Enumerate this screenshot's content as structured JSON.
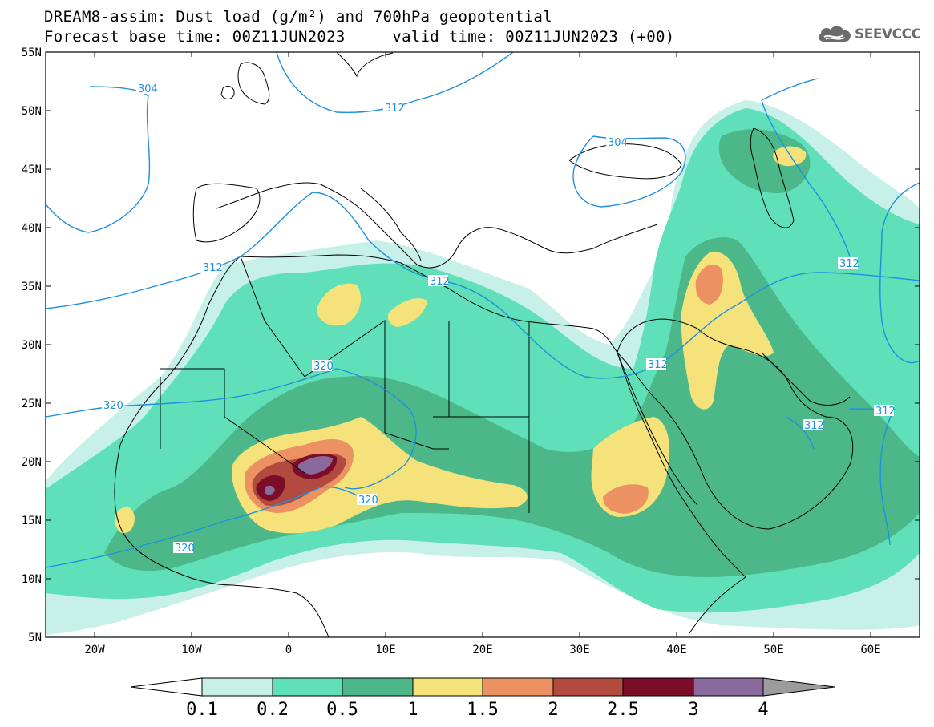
{
  "header": {
    "line1": "DREAM8-assim: Dust load (g/m²) and 700hPa geopotential",
    "line2": "Forecast base time: 00Z11JUN2023     valid time: 00Z11JUN2023 (+00)"
  },
  "logo": {
    "text": "SEEVCCC",
    "icon": "cloud-icon"
  },
  "axes": {
    "lat_labels": [
      "55N",
      "50N",
      "45N",
      "40N",
      "35N",
      "30N",
      "25N",
      "20N",
      "15N",
      "10N",
      "5N"
    ],
    "lon_labels": [
      "20W",
      "10W",
      "0",
      "10E",
      "20E",
      "30E",
      "40E",
      "50E",
      "60E"
    ]
  },
  "contours": {
    "color": "#1e90e0",
    "labels": [
      "304",
      "312",
      "312",
      "304",
      "312",
      "312",
      "312",
      "320",
      "320",
      "320",
      "320",
      "312",
      "312"
    ]
  },
  "colorbar": {
    "levels": [
      "0.1",
      "0.2",
      "0.5",
      "1",
      "1.5",
      "2",
      "2.5",
      "3",
      "4"
    ],
    "colors": [
      "#c6f0e8",
      "#5fe0b9",
      "#4cb88a",
      "#f5e27a",
      "#ec9262",
      "#b24a3f",
      "#7c0d28",
      "#8a6a9c"
    ],
    "under_color": "#ffffff",
    "over_color": "#9c9c9c"
  }
}
